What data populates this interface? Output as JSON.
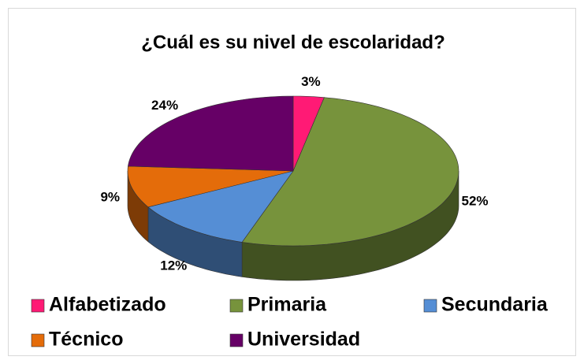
{
  "chart_data": {
    "type": "pie",
    "title": "¿Cuál es su nivel de escolaridad?",
    "categories": [
      "Alfabetizado",
      "Primaria",
      "Secundaria",
      "Técnico",
      "Universidad"
    ],
    "values": [
      3,
      52,
      12,
      9,
      24
    ],
    "value_labels": [
      "3%",
      "52%",
      "12%",
      "9%",
      "24%"
    ],
    "colors": [
      "#ff1a75",
      "#77933c",
      "#558ed5",
      "#e46c0a",
      "#660066"
    ],
    "legend": "bottom"
  }
}
